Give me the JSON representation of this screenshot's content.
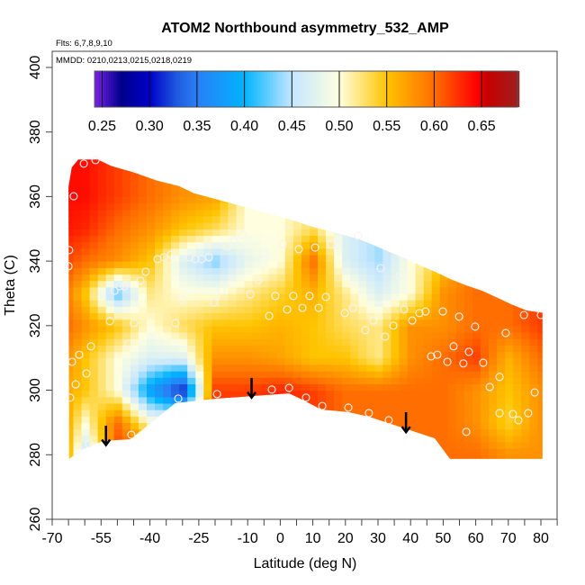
{
  "chart_data": {
    "type": "heatmap",
    "title": "ATOM2 Northbound asymmetry_532_AMP",
    "subtitle_flights": "Flts: 6,7,8,9,10",
    "subtitle_dates": "MMDD: 0210,0213,0215,0218,0219",
    "xlabel": "Latitude (deg N)",
    "ylabel": "Theta (C)",
    "xlim": [
      -70,
      85
    ],
    "ylim": [
      260,
      404.5
    ],
    "x_tick_labels": [
      "-70",
      "-55",
      "-40",
      "-25",
      "-10",
      "0",
      "10",
      "20",
      "30",
      "40",
      "50",
      "60",
      "70",
      "80"
    ],
    "x_tick_values": [
      -70,
      -55,
      -40,
      -25,
      -10,
      0,
      10,
      20,
      30,
      40,
      50,
      60,
      70,
      80
    ],
    "y_tick_labels": [
      "260",
      "280",
      "300",
      "320",
      "340",
      "360",
      "380",
      "400"
    ],
    "y_tick_values": [
      260,
      280,
      300,
      320,
      340,
      360,
      380,
      400
    ],
    "grid": false,
    "colorbar": {
      "placement": "top",
      "range": [
        0.242,
        0.688
      ],
      "tick_labels": [
        "0.25",
        "0.30",
        "0.35",
        "0.40",
        "0.45",
        "0.50",
        "0.55",
        "0.60",
        "0.65"
      ],
      "tick_values": [
        0.25,
        0.3,
        0.35,
        0.4,
        0.45,
        0.5,
        0.55,
        0.6,
        0.65
      ],
      "colormap": [
        [
          0.242,
          "#7a22e6"
        ],
        [
          0.27,
          "#00008c"
        ],
        [
          0.3,
          "#0000c8"
        ],
        [
          0.33,
          "#1f5ee0"
        ],
        [
          0.35,
          "#2a7ff5"
        ],
        [
          0.4,
          "#00b4ff"
        ],
        [
          0.45,
          "#c4e6ff"
        ],
        [
          0.5,
          "#ffffe0"
        ],
        [
          0.55,
          "#ffc400"
        ],
        [
          0.6,
          "#ff6e00"
        ],
        [
          0.645,
          "#ff0000"
        ],
        [
          0.655,
          "#c80000"
        ],
        [
          0.688,
          "#a01e1e"
        ]
      ]
    },
    "grid_lat": [
      -70,
      -60,
      -50,
      -40,
      -30,
      -20,
      -10,
      0,
      10,
      20,
      30,
      40,
      50,
      60,
      70,
      80
    ],
    "grid_theta": [
      280,
      290,
      300,
      310,
      320,
      330,
      340,
      350,
      360,
      370
    ],
    "z": [
      [
        0.66,
        0.45,
        0.62,
        null,
        null,
        null,
        null,
        null,
        null,
        null,
        null,
        null,
        0.6,
        0.6,
        0.58,
        0.58
      ],
      [
        0.62,
        0.5,
        0.6,
        0.5,
        null,
        null,
        null,
        null,
        null,
        null,
        null,
        0.6,
        0.6,
        0.58,
        0.54,
        0.58
      ],
      [
        0.58,
        0.55,
        0.5,
        0.38,
        0.3,
        0.62,
        0.62,
        0.63,
        0.62,
        0.6,
        0.6,
        0.6,
        0.6,
        0.58,
        0.55,
        0.58
      ],
      [
        0.6,
        0.55,
        0.5,
        0.47,
        0.47,
        0.58,
        0.58,
        0.57,
        0.55,
        0.55,
        0.52,
        0.58,
        0.6,
        0.62,
        0.56,
        0.6
      ],
      [
        0.62,
        0.58,
        0.55,
        0.5,
        0.53,
        0.55,
        0.55,
        0.56,
        0.55,
        0.53,
        0.52,
        0.58,
        0.58,
        0.6,
        0.6,
        0.62
      ],
      [
        0.62,
        0.55,
        0.42,
        0.52,
        0.5,
        0.5,
        0.52,
        0.54,
        0.56,
        0.52,
        0.47,
        0.5,
        0.58,
        0.6,
        0.6,
        null
      ],
      [
        0.63,
        0.6,
        0.58,
        0.55,
        0.47,
        0.43,
        0.48,
        0.5,
        0.6,
        0.47,
        0.44,
        0.5,
        0.55,
        null,
        null,
        null
      ],
      [
        0.64,
        0.63,
        0.6,
        0.58,
        0.55,
        0.53,
        0.5,
        0.5,
        0.53,
        null,
        null,
        null,
        null,
        null,
        null,
        null
      ],
      [
        0.64,
        0.64,
        0.62,
        0.6,
        0.58,
        0.57,
        null,
        null,
        null,
        null,
        null,
        null,
        null,
        null,
        null,
        null
      ],
      [
        0.64,
        0.64,
        0.62,
        0.6,
        null,
        null,
        null,
        null,
        null,
        null,
        null,
        null,
        null,
        null,
        null,
        null
      ]
    ],
    "domain_outline": [
      [
        -65,
        363
      ],
      [
        -64,
        369
      ],
      [
        -62,
        371.5
      ],
      [
        -56,
        371.5
      ],
      [
        -52,
        369.5
      ],
      [
        -45,
        367.5
      ],
      [
        -38,
        365
      ],
      [
        -31,
        363.2
      ],
      [
        -26.5,
        361
      ],
      [
        -19,
        359
      ],
      [
        -11.7,
        357
      ],
      [
        -4.3,
        355
      ],
      [
        2.7,
        353
      ],
      [
        10,
        350.6
      ],
      [
        17.3,
        348.7
      ],
      [
        24.5,
        346.7
      ],
      [
        29,
        344.8
      ],
      [
        33.6,
        342.8
      ],
      [
        38.3,
        340.9
      ],
      [
        43.3,
        338.5
      ],
      [
        48,
        336.5
      ],
      [
        52,
        334.5
      ],
      [
        57,
        332.5
      ],
      [
        62,
        330.8
      ],
      [
        67,
        328.5
      ],
      [
        71,
        326.6
      ],
      [
        75.6,
        324.7
      ],
      [
        80.5,
        324
      ],
      [
        80.5,
        278.7
      ],
      [
        52.1,
        278.7
      ],
      [
        47.4,
        285.1
      ],
      [
        27.2,
        291.8
      ],
      [
        20.9,
        293.2
      ],
      [
        12.6,
        294
      ],
      [
        7.3,
        296.8
      ],
      [
        2.7,
        299
      ],
      [
        -19.4,
        297.4
      ],
      [
        -32.2,
        296
      ],
      [
        -46,
        284.8
      ],
      [
        -54.3,
        284.3
      ],
      [
        -61.2,
        281.5
      ],
      [
        -64.8,
        278.7
      ]
    ],
    "points": [
      [
        -60.3,
        370.2
      ],
      [
        -56.7,
        371.3
      ],
      [
        -63.4,
        360.1
      ],
      [
        -64.8,
        343.4
      ],
      [
        -65.0,
        338.4
      ],
      [
        -37.7,
        340.6
      ],
      [
        -35.7,
        341.2
      ],
      [
        -33.5,
        342.0
      ],
      [
        -41.3,
        336.7
      ],
      [
        -42.9,
        333.9
      ],
      [
        -49.3,
        332.2
      ],
      [
        -50.9,
        330.8
      ],
      [
        -47.9,
        332.2
      ],
      [
        -30.2,
        328.1
      ],
      [
        -20.3,
        327.2
      ],
      [
        -18.1,
        330.8
      ],
      [
        -28.0,
        341.2
      ],
      [
        -26.1,
        340.6
      ],
      [
        -24.1,
        340.6
      ],
      [
        -21.9,
        341.2
      ],
      [
        -16.4,
        344.5
      ],
      [
        -14.2,
        346.2
      ],
      [
        -11.7,
        348.1
      ],
      [
        -4.8,
        342.3
      ],
      [
        0.7,
        345.3
      ],
      [
        5.7,
        343.7
      ],
      [
        -6.7,
        334.2
      ],
      [
        -9.2,
        329.7
      ],
      [
        -1.5,
        329.2
      ],
      [
        4.0,
        329.2
      ],
      [
        2.1,
        325.0
      ],
      [
        -3.4,
        323.0
      ],
      [
        6.8,
        325.5
      ],
      [
        -32.2,
        320.8
      ],
      [
        -44.9,
        320.8
      ],
      [
        -52.3,
        321.4
      ],
      [
        -46.5,
        314.4
      ],
      [
        -58.1,
        313.6
      ],
      [
        -61.7,
        311.0
      ],
      [
        -63.9,
        308.8
      ],
      [
        -59.5,
        305.2
      ],
      [
        -62.8,
        301.8
      ],
      [
        -64.5,
        297.7
      ],
      [
        -31.3,
        297.4
      ],
      [
        -19.4,
        298.8
      ],
      [
        -2.6,
        300.2
      ],
      [
        2.7,
        300.7
      ],
      [
        -45.7,
        286.2
      ],
      [
        -58.7,
        283.4
      ],
      [
        -62.3,
        281.5
      ],
      [
        10.7,
        344.2
      ],
      [
        15.6,
        345.1
      ],
      [
        17.8,
        344.8
      ],
      [
        23.9,
        347.9
      ],
      [
        30.8,
        337.8
      ],
      [
        36.6,
        335.3
      ],
      [
        9.0,
        329.2
      ],
      [
        14.0,
        328.9
      ],
      [
        11.8,
        325.5
      ],
      [
        22.3,
        325.5
      ],
      [
        19.8,
        323.9
      ],
      [
        38.0,
        325.0
      ],
      [
        42.7,
        323.9
      ],
      [
        44.6,
        324.4
      ],
      [
        49.9,
        324.4
      ],
      [
        54.9,
        322.8
      ],
      [
        28.6,
        321.6
      ],
      [
        34.7,
        320.0
      ],
      [
        26.1,
        318.6
      ],
      [
        32.2,
        316.6
      ],
      [
        40.5,
        321.6
      ],
      [
        59.8,
        319.7
      ],
      [
        69.2,
        317.7
      ],
      [
        74.8,
        323.3
      ],
      [
        80.0,
        323.3
      ],
      [
        53.2,
        313.6
      ],
      [
        57.9,
        311.9
      ],
      [
        46.3,
        310.5
      ],
      [
        48.2,
        311.0
      ],
      [
        51.3,
        308.8
      ],
      [
        56.2,
        308.3
      ],
      [
        62.3,
        308.5
      ],
      [
        67.3,
        304.1
      ],
      [
        64.3,
        301.0
      ],
      [
        78.1,
        299.3
      ],
      [
        7.9,
        297.7
      ],
      [
        12.9,
        295.1
      ],
      [
        20.9,
        294.6
      ],
      [
        27.2,
        292.9
      ],
      [
        33.3,
        290.7
      ],
      [
        57.1,
        287.1
      ],
      [
        67.3,
        292.9
      ],
      [
        71.4,
        292.6
      ],
      [
        73.1,
        290.7
      ],
      [
        76.1,
        292.9
      ]
    ],
    "arrows": [
      {
        "lat": -53.5,
        "theta_from": 289,
        "theta_to": 283
      },
      {
        "lat": -8.8,
        "theta_from": 303.8,
        "theta_to": 297.7
      },
      {
        "lat": 38.6,
        "theta_from": 293.2,
        "theta_to": 287
      }
    ]
  }
}
